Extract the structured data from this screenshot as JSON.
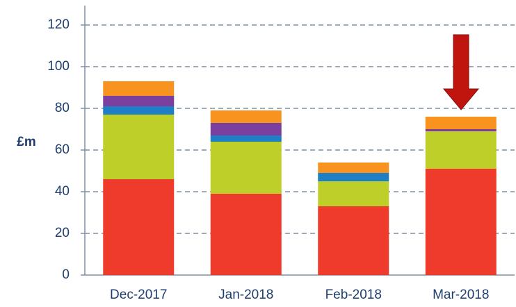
{
  "chart_data": {
    "type": "stacked_bar",
    "y_label": "£m",
    "categories": [
      "Dec-2017",
      "Jan-2018",
      "Feb-2018",
      "Mar-2018"
    ],
    "series": [
      {
        "color": "#ef3b2c",
        "values": [
          46,
          39,
          33,
          51
        ]
      },
      {
        "color": "#bfcf2a",
        "values": [
          31,
          25,
          12,
          18
        ]
      },
      {
        "color": "#1f7fc4",
        "values": [
          4,
          3,
          4,
          0
        ]
      },
      {
        "color": "#7b3fa0",
        "values": [
          5,
          6,
          0,
          1
        ]
      },
      {
        "color": "#f7931e",
        "values": [
          7,
          6,
          5,
          6
        ]
      }
    ],
    "ylim": [
      0,
      120
    ],
    "yticks": [
      0,
      20,
      40,
      60,
      80,
      100,
      120
    ],
    "grid": true
  }
}
